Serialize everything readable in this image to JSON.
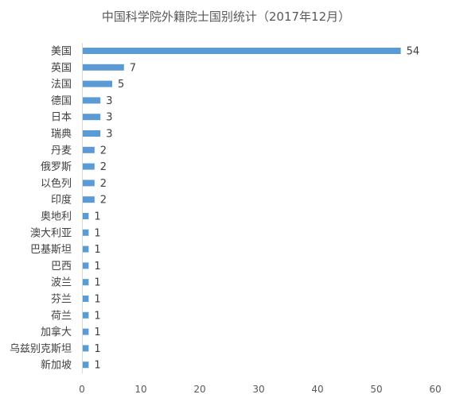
{
  "chart_data": {
    "type": "bar",
    "orientation": "horizontal",
    "title": "中国科学院外籍院士国别统计（2017年12月）",
    "categories": [
      "美国",
      "英国",
      "法国",
      "德国",
      "日本",
      "瑞典",
      "丹麦",
      "俄罗斯",
      "以色列",
      "印度",
      "奥地利",
      "澳大利亚",
      "巴基斯坦",
      "巴西",
      "波兰",
      "芬兰",
      "荷兰",
      "加拿大",
      "乌兹别克斯坦",
      "新加坡"
    ],
    "values": [
      54,
      7,
      5,
      3,
      3,
      3,
      2,
      2,
      2,
      2,
      1,
      1,
      1,
      1,
      1,
      1,
      1,
      1,
      1,
      1
    ],
    "xlim": [
      0,
      60
    ],
    "xticks": [
      0,
      10,
      20,
      30,
      40,
      50,
      60
    ],
    "bar_color": "#5b9bd5",
    "data_labels": true,
    "grid": false,
    "legend": "none"
  }
}
